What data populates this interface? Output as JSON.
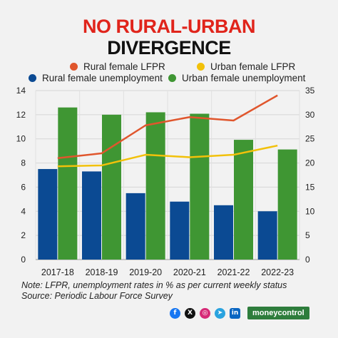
{
  "title": {
    "line1": "NO RURAL-URBAN",
    "line2": "DIVERGENCE"
  },
  "legend": [
    {
      "label": "Rural female LFPR",
      "color": "#e0562d"
    },
    {
      "label": "Urban female LFPR",
      "color": "#f2c10a"
    },
    {
      "label": "Rural female unemployment",
      "color": "#0b4a93"
    },
    {
      "label": "Urban female unemployment",
      "color": "#3f9633"
    }
  ],
  "chart_data": {
    "type": "bar",
    "categories": [
      "2017-18",
      "2018-19",
      "2019-20",
      "2020-21",
      "2021-22",
      "2022-23"
    ],
    "left_axis": {
      "ylim": [
        0,
        14
      ],
      "ticks": [
        0,
        2,
        4,
        6,
        8,
        10,
        12,
        14
      ]
    },
    "right_axis": {
      "ylim": [
        0,
        35
      ],
      "ticks": [
        0,
        5,
        10,
        15,
        20,
        25,
        30,
        35
      ]
    },
    "series": [
      {
        "name": "Rural female unemployment",
        "type": "bar",
        "axis": "left",
        "color": "#0b4a93",
        "values": [
          7.5,
          7.3,
          5.5,
          4.8,
          4.5,
          4.0
        ]
      },
      {
        "name": "Urban female unemployment",
        "type": "bar",
        "axis": "right",
        "color": "#3f9633",
        "values": [
          31.5,
          30.0,
          30.5,
          30.2,
          24.8,
          22.8
        ]
      },
      {
        "name": "Rural female LFPR",
        "type": "line",
        "axis": "right",
        "color": "#e0562d",
        "values": [
          21.0,
          22.0,
          27.8,
          29.5,
          28.8,
          34.0
        ]
      },
      {
        "name": "Urban female LFPR",
        "type": "line",
        "axis": "right",
        "color": "#f2c10a",
        "values": [
          19.3,
          19.5,
          21.7,
          21.2,
          21.7,
          23.6
        ]
      }
    ],
    "grid": true
  },
  "footnote": {
    "line1": "Note: LFPR, unemployment rates in % as per current weekly status",
    "line2": "Source: Periodic Labour Force Survey"
  },
  "brand": "moneycontrol",
  "social_icons": [
    "facebook-icon",
    "x-icon",
    "instagram-icon",
    "telegram-icon",
    "linkedin-icon"
  ]
}
